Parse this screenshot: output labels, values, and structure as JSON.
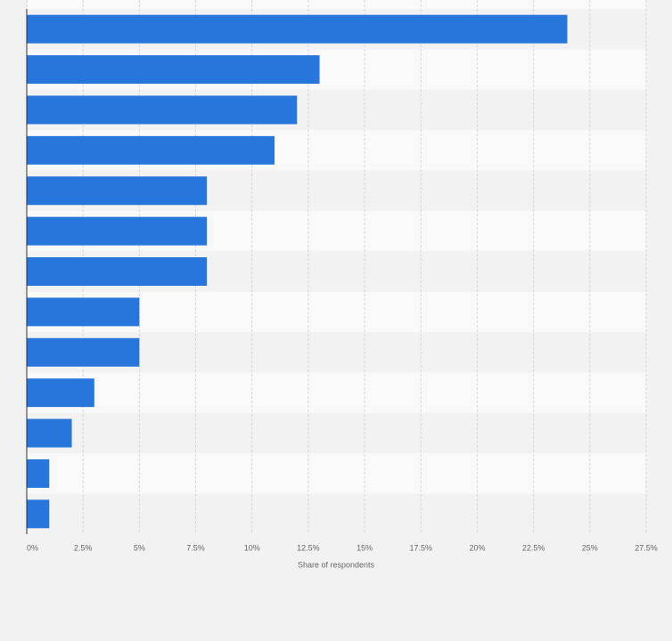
{
  "chart_data": {
    "type": "bar",
    "orientation": "horizontal",
    "x_label": "Share of respondents",
    "categories": [
      null,
      null,
      null,
      null,
      null,
      null,
      null,
      null,
      null,
      null,
      null,
      null,
      null
    ],
    "values": [
      24,
      13,
      12,
      11,
      8,
      8,
      8,
      5,
      5,
      3,
      2,
      1,
      1
    ],
    "color": "#2776dc",
    "xlim": [
      0,
      27.5
    ],
    "xticks": [
      {
        "value": 0,
        "label": "0%"
      },
      {
        "value": 2.5,
        "label": "2.5%"
      },
      {
        "value": 5,
        "label": "5%"
      },
      {
        "value": 7.5,
        "label": "7.5%"
      },
      {
        "value": 10,
        "label": "10%"
      },
      {
        "value": 12.5,
        "label": "12.5%"
      },
      {
        "value": 15,
        "label": "15%"
      },
      {
        "value": 17.5,
        "label": "17.5%"
      },
      {
        "value": 20,
        "label": "20%"
      },
      {
        "value": 22.5,
        "label": "22.5%"
      },
      {
        "value": 25,
        "label": "25%"
      },
      {
        "value": 27.5,
        "label": "27.5%"
      }
    ],
    "grid": true
  }
}
